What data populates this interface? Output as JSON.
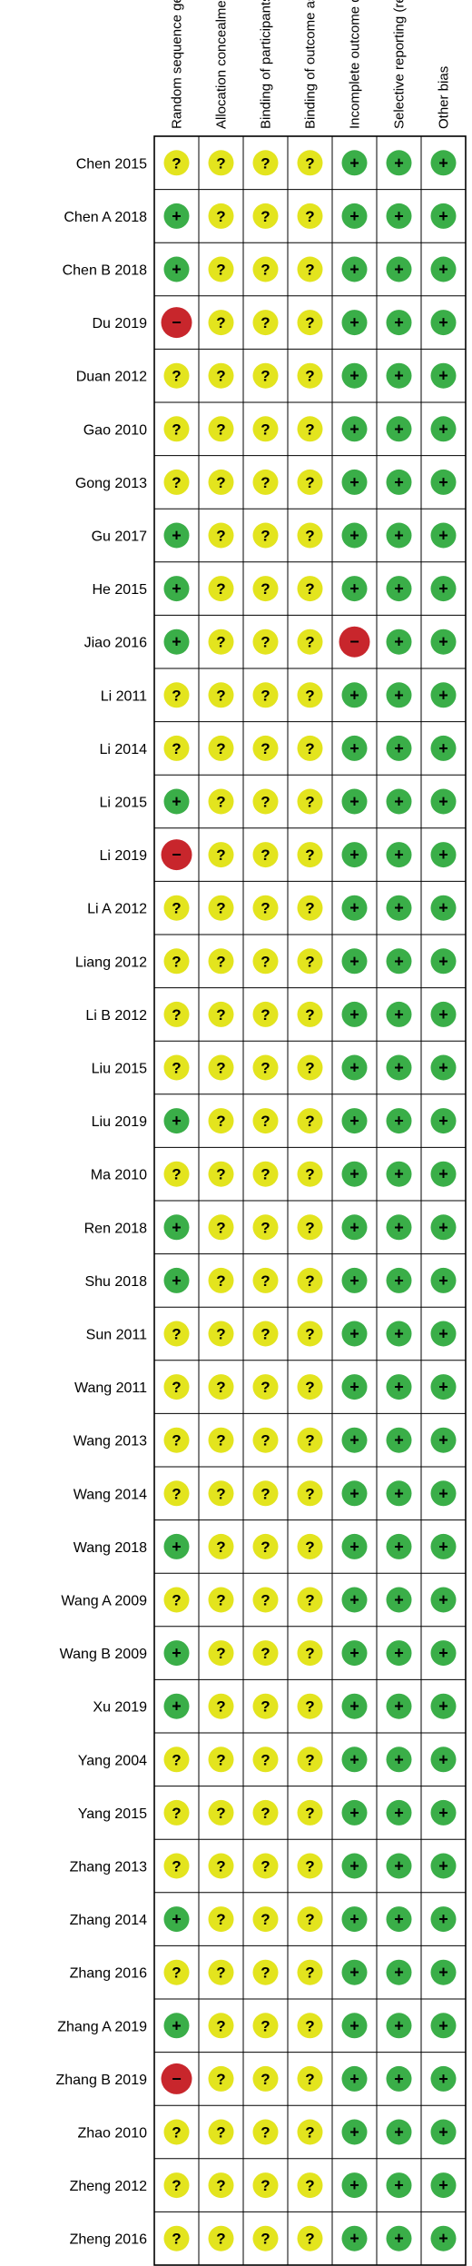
{
  "chart_data": {
    "type": "table",
    "domains": [
      "Random sequence generation (selection bias)",
      "Allocation concealment (selection bias)",
      "Binding of participants and personnel (performance bias)",
      "Binding of outcome assessment (detection bias)",
      "Incomplete outcome data (attrition bias)",
      "Selective reporting (reporting bias)",
      "Other bias"
    ],
    "legend": {
      "low": {
        "symbol": "+",
        "color": "#3aae48"
      },
      "unclear": {
        "symbol": "?",
        "color": "#e3e41e"
      },
      "high": {
        "symbol": "−",
        "color": "#c8262c"
      }
    },
    "studies": [
      {
        "name": "Chen 2015",
        "ratings": [
          "unclear",
          "unclear",
          "unclear",
          "unclear",
          "low",
          "low",
          "low"
        ]
      },
      {
        "name": "Chen A 2018",
        "ratings": [
          "low",
          "unclear",
          "unclear",
          "unclear",
          "low",
          "low",
          "low"
        ]
      },
      {
        "name": "Chen B 2018",
        "ratings": [
          "low",
          "unclear",
          "unclear",
          "unclear",
          "low",
          "low",
          "low"
        ]
      },
      {
        "name": "Du 2019",
        "ratings": [
          "high",
          "unclear",
          "unclear",
          "unclear",
          "low",
          "low",
          "low"
        ]
      },
      {
        "name": "Duan 2012",
        "ratings": [
          "unclear",
          "unclear",
          "unclear",
          "unclear",
          "low",
          "low",
          "low"
        ]
      },
      {
        "name": "Gao 2010",
        "ratings": [
          "unclear",
          "unclear",
          "unclear",
          "unclear",
          "low",
          "low",
          "low"
        ]
      },
      {
        "name": "Gong 2013",
        "ratings": [
          "unclear",
          "unclear",
          "unclear",
          "unclear",
          "low",
          "low",
          "low"
        ]
      },
      {
        "name": "Gu 2017",
        "ratings": [
          "low",
          "unclear",
          "unclear",
          "unclear",
          "low",
          "low",
          "low"
        ]
      },
      {
        "name": "He 2015",
        "ratings": [
          "low",
          "unclear",
          "unclear",
          "unclear",
          "low",
          "low",
          "low"
        ]
      },
      {
        "name": "Jiao 2016",
        "ratings": [
          "low",
          "unclear",
          "unclear",
          "unclear",
          "high",
          "low",
          "low"
        ]
      },
      {
        "name": "Li 2011",
        "ratings": [
          "unclear",
          "unclear",
          "unclear",
          "unclear",
          "low",
          "low",
          "low"
        ]
      },
      {
        "name": "Li 2014",
        "ratings": [
          "unclear",
          "unclear",
          "unclear",
          "unclear",
          "low",
          "low",
          "low"
        ]
      },
      {
        "name": "Li 2015",
        "ratings": [
          "low",
          "unclear",
          "unclear",
          "unclear",
          "low",
          "low",
          "low"
        ]
      },
      {
        "name": "Li 2019",
        "ratings": [
          "high",
          "unclear",
          "unclear",
          "unclear",
          "low",
          "low",
          "low"
        ]
      },
      {
        "name": "Li A 2012",
        "ratings": [
          "unclear",
          "unclear",
          "unclear",
          "unclear",
          "low",
          "low",
          "low"
        ]
      },
      {
        "name": "Liang 2012",
        "ratings": [
          "unclear",
          "unclear",
          "unclear",
          "unclear",
          "low",
          "low",
          "low"
        ]
      },
      {
        "name": "Li B 2012",
        "ratings": [
          "unclear",
          "unclear",
          "unclear",
          "unclear",
          "low",
          "low",
          "low"
        ]
      },
      {
        "name": "Liu 2015",
        "ratings": [
          "unclear",
          "unclear",
          "unclear",
          "unclear",
          "low",
          "low",
          "low"
        ]
      },
      {
        "name": "Liu 2019",
        "ratings": [
          "low",
          "unclear",
          "unclear",
          "unclear",
          "low",
          "low",
          "low"
        ]
      },
      {
        "name": "Ma 2010",
        "ratings": [
          "unclear",
          "unclear",
          "unclear",
          "unclear",
          "low",
          "low",
          "low"
        ]
      },
      {
        "name": "Ren 2018",
        "ratings": [
          "low",
          "unclear",
          "unclear",
          "unclear",
          "low",
          "low",
          "low"
        ]
      },
      {
        "name": "Shu 2018",
        "ratings": [
          "low",
          "unclear",
          "unclear",
          "unclear",
          "low",
          "low",
          "low"
        ]
      },
      {
        "name": "Sun 2011",
        "ratings": [
          "unclear",
          "unclear",
          "unclear",
          "unclear",
          "low",
          "low",
          "low"
        ]
      },
      {
        "name": "Wang 2011",
        "ratings": [
          "unclear",
          "unclear",
          "unclear",
          "unclear",
          "low",
          "low",
          "low"
        ]
      },
      {
        "name": "Wang 2013",
        "ratings": [
          "unclear",
          "unclear",
          "unclear",
          "unclear",
          "low",
          "low",
          "low"
        ]
      },
      {
        "name": "Wang 2014",
        "ratings": [
          "unclear",
          "unclear",
          "unclear",
          "unclear",
          "low",
          "low",
          "low"
        ]
      },
      {
        "name": "Wang 2018",
        "ratings": [
          "low",
          "unclear",
          "unclear",
          "unclear",
          "low",
          "low",
          "low"
        ]
      },
      {
        "name": "Wang A 2009",
        "ratings": [
          "unclear",
          "unclear",
          "unclear",
          "unclear",
          "low",
          "low",
          "low"
        ]
      },
      {
        "name": "Wang B 2009",
        "ratings": [
          "low",
          "unclear",
          "unclear",
          "unclear",
          "low",
          "low",
          "low"
        ]
      },
      {
        "name": "Xu 2019",
        "ratings": [
          "low",
          "unclear",
          "unclear",
          "unclear",
          "low",
          "low",
          "low"
        ]
      },
      {
        "name": "Yang 2004",
        "ratings": [
          "unclear",
          "unclear",
          "unclear",
          "unclear",
          "low",
          "low",
          "low"
        ]
      },
      {
        "name": "Yang 2015",
        "ratings": [
          "unclear",
          "unclear",
          "unclear",
          "unclear",
          "low",
          "low",
          "low"
        ]
      },
      {
        "name": "Zhang 2013",
        "ratings": [
          "unclear",
          "unclear",
          "unclear",
          "unclear",
          "low",
          "low",
          "low"
        ]
      },
      {
        "name": "Zhang 2014",
        "ratings": [
          "low",
          "unclear",
          "unclear",
          "unclear",
          "low",
          "low",
          "low"
        ]
      },
      {
        "name": "Zhang 2016",
        "ratings": [
          "unclear",
          "unclear",
          "unclear",
          "unclear",
          "low",
          "low",
          "low"
        ]
      },
      {
        "name": "Zhang A 2019",
        "ratings": [
          "low",
          "unclear",
          "unclear",
          "unclear",
          "low",
          "low",
          "low"
        ]
      },
      {
        "name": "Zhang B 2019",
        "ratings": [
          "high",
          "unclear",
          "unclear",
          "unclear",
          "low",
          "low",
          "low"
        ]
      },
      {
        "name": "Zhao 2010",
        "ratings": [
          "unclear",
          "unclear",
          "unclear",
          "unclear",
          "low",
          "low",
          "low"
        ]
      },
      {
        "name": "Zheng 2012",
        "ratings": [
          "unclear",
          "unclear",
          "unclear",
          "unclear",
          "low",
          "low",
          "low"
        ]
      },
      {
        "name": "Zheng 2016",
        "ratings": [
          "unclear",
          "unclear",
          "unclear",
          "unclear",
          "low",
          "low",
          "low"
        ]
      }
    ]
  }
}
